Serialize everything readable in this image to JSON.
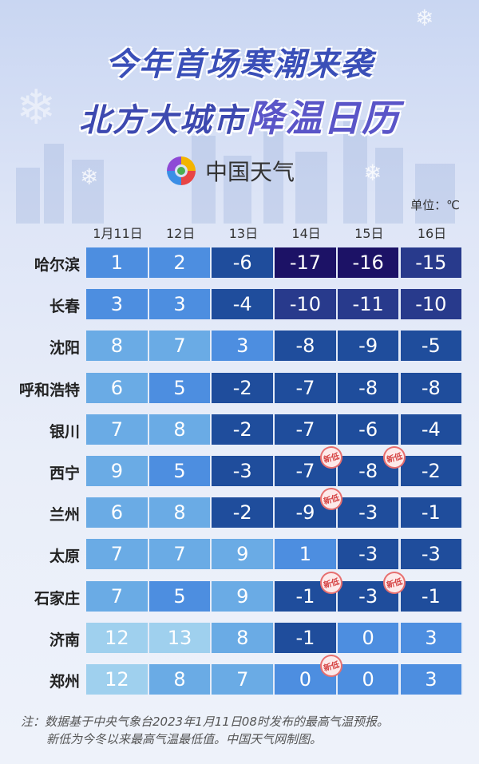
{
  "header": {
    "title_line1": "今年首场寒潮来袭",
    "title_line2_a": "北方大城市",
    "title_line2_b": "降温日历",
    "logo_text": "中国天气",
    "unit": "单位：℃"
  },
  "chart_data": {
    "type": "heatmap",
    "columns": [
      "1月11日",
      "12日",
      "13日",
      "14日",
      "15日",
      "16日"
    ],
    "rows": [
      "哈尔滨",
      "长春",
      "沈阳",
      "呼和浩特",
      "银川",
      "西宁",
      "兰州",
      "太原",
      "石家庄",
      "济南",
      "郑州"
    ],
    "values": [
      [
        1,
        2,
        -6,
        -17,
        -16,
        -15
      ],
      [
        3,
        3,
        -4,
        -10,
        -11,
        -10
      ],
      [
        8,
        7,
        3,
        -8,
        -9,
        -5
      ],
      [
        6,
        5,
        -2,
        -7,
        -8,
        -8
      ],
      [
        7,
        8,
        -2,
        -7,
        -6,
        -4
      ],
      [
        9,
        5,
        -3,
        -7,
        -8,
        -2
      ],
      [
        6,
        8,
        -2,
        -9,
        -3,
        -1
      ],
      [
        7,
        7,
        9,
        1,
        -3,
        -3
      ],
      [
        7,
        5,
        9,
        -1,
        -3,
        -1
      ],
      [
        12,
        13,
        8,
        -1,
        0,
        3
      ],
      [
        12,
        8,
        7,
        0,
        0,
        3
      ]
    ],
    "badge_label": "新低",
    "new_low_cells": [
      {
        "row": "西宁",
        "column": "14日"
      },
      {
        "row": "西宁",
        "column": "15日"
      },
      {
        "row": "兰州",
        "column": "14日"
      },
      {
        "row": "石家庄",
        "column": "14日"
      },
      {
        "row": "石家庄",
        "column": "15日"
      },
      {
        "row": "郑州",
        "column": "14日"
      }
    ],
    "color_scale": {
      "warm": "#9fd0ee",
      "mild": "#6aabe5",
      "cool": "#4d8ee0",
      "cold": "#1f4d9c",
      "colder": "#283a8c",
      "coldest": "#1c1266"
    }
  },
  "footer": {
    "note_line1": "注：数据基于中央气象台2023年1月11日08时发布的最高气温预报。",
    "note_line2": "新低为今冬以来最高气温最低值。中国天气网制图。"
  }
}
